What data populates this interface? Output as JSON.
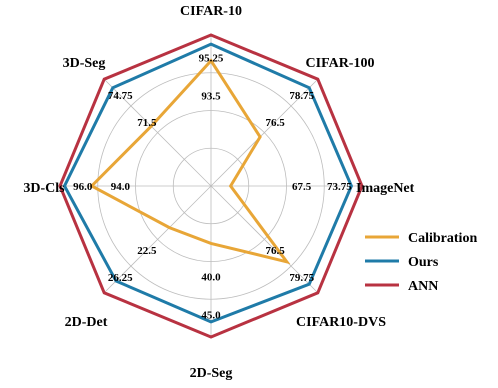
{
  "chart_data": {
    "type": "radar",
    "axes": [
      "CIFAR-10",
      "CIFAR-100",
      "ImageNet",
      "CIFAR10-DVS",
      "2D-Seg",
      "2D-Det",
      "3D-Cls",
      "3D-Seg"
    ],
    "tick_labels": [
      {
        "axis": 0,
        "label": "95.25",
        "level": 0.85
      },
      {
        "axis": 0,
        "label": "93.5",
        "level": 0.6
      },
      {
        "axis": 1,
        "label": "78.75",
        "level": 0.85
      },
      {
        "axis": 1,
        "label": "76.5",
        "level": 0.6
      },
      {
        "axis": 2,
        "label": "73.75",
        "level": 0.85
      },
      {
        "axis": 2,
        "label": "67.5",
        "level": 0.6
      },
      {
        "axis": 3,
        "label": "79.75",
        "level": 0.85
      },
      {
        "axis": 3,
        "label": "76.5",
        "level": 0.6
      },
      {
        "axis": 4,
        "label": "45.0",
        "level": 0.85
      },
      {
        "axis": 4,
        "label": "40.0",
        "level": 0.6
      },
      {
        "axis": 5,
        "label": "26.25",
        "level": 0.85
      },
      {
        "axis": 5,
        "label": "22.5",
        "level": 0.6
      },
      {
        "axis": 6,
        "label": "96.0",
        "level": 0.85
      },
      {
        "axis": 6,
        "label": "94.0",
        "level": 0.6
      },
      {
        "axis": 7,
        "label": "74.75",
        "level": 0.85
      },
      {
        "axis": 7,
        "label": "71.5",
        "level": 0.6
      }
    ],
    "grid_levels": [
      0.25,
      0.5,
      0.75
    ],
    "series": [
      {
        "name": "Calibration",
        "color": "#E8A637",
        "values": [
          0.83,
          0.46,
          0.13,
          0.71,
          0.38,
          0.39,
          0.79,
          0.56
        ]
      },
      {
        "name": "Ours",
        "color": "#1F7BA8",
        "values": [
          0.94,
          0.92,
          0.93,
          0.92,
          0.9,
          0.89,
          0.97,
          0.92
        ]
      },
      {
        "name": "ANN",
        "color": "#B83241",
        "values": [
          1.0,
          1.0,
          1.0,
          1.0,
          1.0,
          1.0,
          1.0,
          1.0
        ]
      }
    ],
    "legend": "bottom-right"
  }
}
